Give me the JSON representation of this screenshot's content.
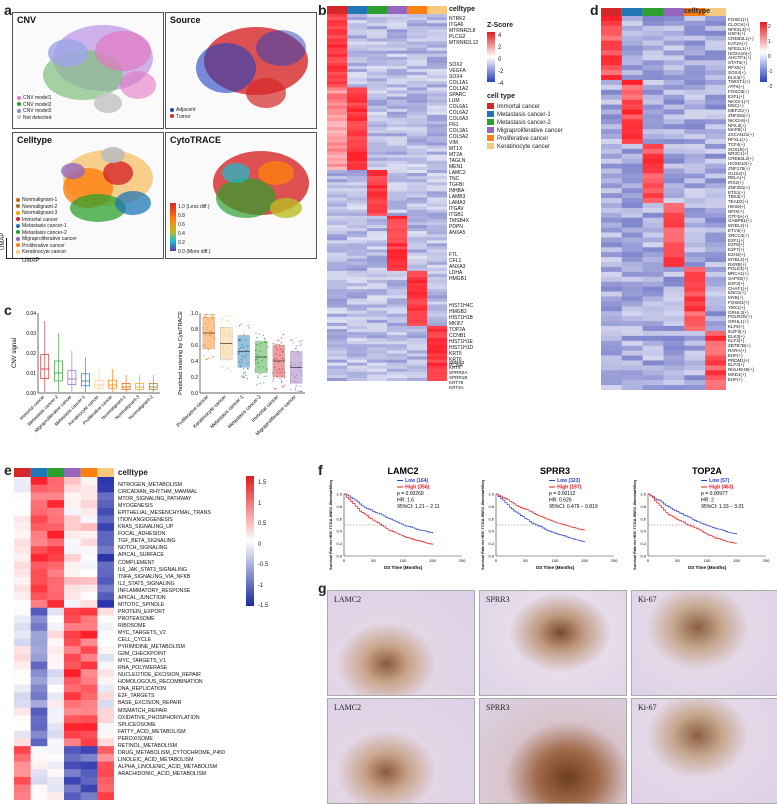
{
  "panels": {
    "a": {
      "letter": "a",
      "umaps": [
        {
          "title": "CNV",
          "legend": [
            "CNV model1",
            "CNV model2",
            "CNV model3",
            "Not detected"
          ],
          "legend_colors": [
            "#e377c2",
            "#2ca02c",
            "#8c8cd0",
            "#c8c8c8"
          ]
        },
        {
          "title": "Source",
          "legend": [
            "Adjacent",
            "Tumor"
          ],
          "legend_colors": [
            "#1f3fbf",
            "#d62728"
          ]
        },
        {
          "title": "Celltype",
          "legend": [
            "Nonmalignant-1",
            "Nonmalignant-2",
            "Nonmalignant-3",
            "Immortal cancer",
            "Metastasis cancer-1",
            "Metastasis cancer-2",
            "Migraproliferative cancer",
            "Proliferative cancer",
            "Keratinocyte cancer"
          ],
          "legend_colors": [
            "#d95f02",
            "#a6761d",
            "#e6ab02",
            "#d62728",
            "#1f77b4",
            "#2ca02c",
            "#9467bd",
            "#ff7f0e",
            "#f7c97e"
          ]
        },
        {
          "title": "CytoTRACE",
          "legend": [
            "1.0 (Less diff.)",
            "0.8",
            "0.6",
            "0.4",
            "0.2",
            "0.0 (More diff.)"
          ]
        }
      ],
      "axis_y": "UMAP",
      "axis_x": "UMAP"
    },
    "b": {
      "letter": "b",
      "column_label": "celltype",
      "genes_group1": [
        "NTRK2",
        "ITGA6",
        "MTRNR2L8",
        "PLCG2",
        "MTRNR2L12"
      ],
      "genes_group2": [
        "SOX2",
        "VEGFA",
        "SOX4",
        "COL1A1",
        "COL1A2",
        "SPARC",
        "LUM",
        "COL6A1",
        "COL6A2",
        "COL6A3",
        "FN1",
        "COL3A1",
        "COL5A2",
        "VIM",
        "MT1X",
        "MT2A",
        "TAGLN",
        "MEN1"
      ],
      "genes_group3": [
        "LAMC2",
        "TNC",
        "TGFBI",
        "INHBA",
        "LAMB3",
        "LAMA3",
        "ITGAV",
        "ITGB1",
        "TMSB4X",
        "PDPN",
        "ANXA5"
      ],
      "genes_group4": [
        "FTL",
        "CFL1",
        "ANXA3",
        "LDHA",
        "HMGB1"
      ],
      "genes_group5": [
        "HIST1H4C",
        "HMGB2",
        "HIST1H1B",
        "MKI67",
        "TOP2A",
        "CCNB1",
        "HIST1H1E",
        "HIST1H1D",
        "KRT5",
        "KRT6",
        "PCNA"
      ],
      "genes_group6": [
        "SPRR3",
        "KRT4",
        "SPRR2A",
        "SPRR1B",
        "KRT78",
        "KRT6A"
      ],
      "zscore_title": "Z-Score",
      "zscore_ticks": [
        "4",
        "2",
        "0",
        "-2",
        "-4"
      ],
      "celltype_legend_title": "cell type",
      "celltype_legend": [
        "Immortal cancer",
        "Metastasis cancer-1",
        "Metastasis cancer-2",
        "Migraproliferative cancer",
        "Proliferative cancer",
        "Keratinocyte cancer"
      ],
      "celltype_colors": [
        "#d62728",
        "#1f77b4",
        "#2ca02c",
        "#9467bd",
        "#ff7f0e",
        "#f7c97e"
      ]
    },
    "c": {
      "letter": "c",
      "left_ylabel": "CNV signal",
      "left_yticks": [
        "0.04",
        "0.03",
        "0.02",
        "0.01",
        "0.00"
      ],
      "left_categories": [
        "Immortal cancer",
        "Metastasis cancer-2",
        "Migraproliferative cancer",
        "Metastasis cancer-1",
        "Keratinocyte cancer",
        "Proliferative cancer",
        "Nonmalignant-1",
        "Nonmalignant-3",
        "Nonmalignant-2"
      ],
      "right_ylabel": "Predicted ordering by CytoTRACE",
      "right_yticks": [
        "1.0",
        "0.8",
        "0.6",
        "0.4",
        "0.2",
        "0.0"
      ],
      "right_categories": [
        "Proliferative cancer",
        "Keratinocyte cancer",
        "Metastasis cancer-1",
        "Metastasis cancer-2",
        "Immortal cancer",
        "Migraproliferative cancer"
      ]
    },
    "d": {
      "letter": "d",
      "column_label": "celltype",
      "regulons": [
        "FOXE1(+)",
        "CLOCK(+)",
        "NFE2L3(+)",
        "HSF4(+)",
        "CREB3L1(+)",
        "KAT2A(+)",
        "NFE2L1(+)",
        "HOXA10(+)",
        "AHCTF1(+)",
        "STAT6(+)",
        "RFX5(+)",
        "SOX4(+)",
        "ELK3(+)",
        "TWIST1(+)",
        "ATF6(+)",
        "FOXO3(+)",
        "E2F1(+)",
        "NKX3-1(+)",
        "MSC(+)",
        "MEF2C(+)",
        "ZNF281(+)",
        "NKX2-8(+)",
        "NFIL3(+)",
        "MAFB(+)",
        "ZSCAN21(+)",
        "RFXL1(+)",
        "TCF4(+)",
        "SOX18(+)",
        "NR3C1(+)",
        "CREB3L2(+)",
        "HOXD10(+)",
        "ZNF175(+)",
        "GLIS2(+)",
        "RELA(+)",
        "IRX2(+)",
        "ZNF281(+)",
        "ETS1(+)",
        "TBX3(+)",
        "TEAD2(+)",
        "HES6(+)",
        "NFIX(+)",
        "GTF3A(+)",
        "GABPB1(+)",
        "MYBL2(+)",
        "ETV4(+)",
        "XRCC4(+)",
        "E2F1(+)",
        "E2F8(+)",
        "E2F7(+)",
        "EZH2(+)",
        "MYBL2(+)",
        "RXRB(+)",
        "POLE3(+)",
        "BRCA1(+)",
        "SAP30(+)",
        "E2F3(+)",
        "CHAF1(+)",
        "ENO1(+)",
        "MYB(+)",
        "FOXM1(+)",
        "YBX1(+)",
        "GRHL3(+)",
        "POLR3G(+)",
        "GRHL1(+)",
        "KLF5(+)",
        "IKZF3(+)",
        "ELK3(+)",
        "KLF3(+)",
        "ZBTB7B(+)",
        "RARA(+)",
        "EHF(+)",
        "PRDM1(+)",
        "ELF3(+)",
        "RHLHE40(+)",
        "MXD1(+)",
        "EHF(+)"
      ],
      "scale_ticks": [
        "2",
        "1",
        "0",
        "-1",
        "-2"
      ]
    },
    "e": {
      "letter": "e",
      "column_label": "celltype",
      "pathways": [
        "NITROGEN_METABOLISM",
        "CIRCADIAN_RHYTHM_MAMMAL",
        "MTOR_SIGNALING_PATHWAY",
        "MYOGENESIS",
        "EPITHELIAL_MESENCHYMAL_TRANS",
        "ITION ANGIOGENESIS",
        "KRAS_SIGNALING_UP",
        "FOCAL_ADHESION",
        "TGF_BETA_SIGNALING",
        "NOTCH_SIGNALING",
        "APICAL_SURFACE",
        "COMPLEMENT",
        "IL6_JAK_STAT3_SIGNALING",
        "TNFA_SIGNALING_VIA_NFKB",
        "IL2_STAT5_SIGNALING",
        "INFLAMMATORY_RESPONSE",
        "APICAL_JUNCTION",
        "MITOTIC_SPINDLE",
        "PROTEIN_EXPORT",
        "PROTEASOME",
        "RIBOSOME",
        "MYC_TARGETS_V2",
        "CELL_CYCLE",
        "PYRIMIDINE_METABOLISM",
        "G2M_CHECKPOINT",
        "MYC_TARGETS_V1",
        "RNA_POLYMERASE",
        "NUCLEOTIDE_EXCISION_REPAIR",
        "HOMOLOGOUS_RECOMBINATION",
        "DNA_REPLICATION",
        "E2F_TARGETS",
        "BASE_EXCISION_REPAIR",
        "MISMATCH_REPAIR",
        "OXIDATIVE_PHOSPHORYLATION",
        "SPLICEOSOME",
        "FATTY_ACID_METABOLISM",
        "PEROXISOME",
        "RETINOL_METABOLISM",
        "DRUG_METABOLISM_CYTOCHROME_P450",
        "LINOLEIC_ACID_METABOLISM",
        "ALPHA_LINOLENIC_ACID_METABOLISM",
        "ARACHIDONIC_ACID_METABOLISM"
      ],
      "scale_ticks": [
        "1.5",
        "1",
        "0.5",
        "0",
        "-0.5",
        "-1",
        "-1.5"
      ]
    },
    "f": {
      "letter": "f",
      "plots": [
        {
          "gene": "LAMC2",
          "low": "Low (164)",
          "high": "High (356)",
          "p": "p = 0.00269",
          "hr": "HR: 1.6",
          "ci": "95%CI: 1.21 − 2.11"
        },
        {
          "gene": "SPRR3",
          "low": "Low (323)",
          "high": "High (197)",
          "p": "p = 0.00112",
          "hr": "HR: 0.626",
          "ci": "95%CI: 0.479 − 0.819"
        },
        {
          "gene": "TOP2A",
          "low": "Low (57)",
          "high": "High (463)",
          "p": "p = 0.00977",
          "hr": "HR: 2",
          "ci": "95%CI: 1.33 − 3.01"
        }
      ],
      "ylabel": "Survival Rate for HNC TCGA-HNSC-IlluminaHiSeq",
      "xlabel": "OS Time (Months)",
      "yticks": [
        "1.0",
        "0.8",
        "0.6",
        "0.4",
        "0.2",
        "0.0"
      ],
      "xticks": [
        "0",
        "50",
        "100",
        "150",
        "200"
      ]
    },
    "g": {
      "letter": "g",
      "images": [
        "LAMC2",
        "SPRR3",
        "Ki-67",
        "LAMC2",
        "SPRR3",
        "Ki-67"
      ]
    }
  }
}
